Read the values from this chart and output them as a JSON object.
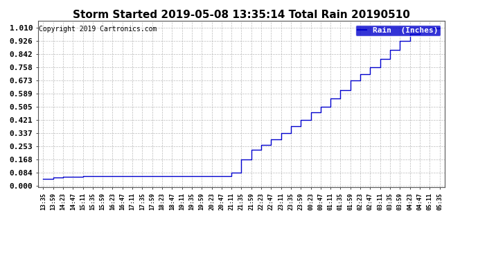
{
  "title": "Storm Started 2019-05-08 13:35:14 Total Rain 20190510",
  "copyright": "Copyright 2019 Cartronics.com",
  "legend_label": "Rain  (Inches)",
  "line_color": "#0000cc",
  "legend_bg": "#0000cc",
  "legend_text_color": "#ffffff",
  "background_color": "#ffffff",
  "plot_bg_color": "#ffffff",
  "grid_color": "#aaaaaa",
  "title_color": "#000000",
  "ylabel_values": [
    0.0,
    0.084,
    0.168,
    0.253,
    0.337,
    0.421,
    0.505,
    0.589,
    0.673,
    0.758,
    0.842,
    0.926,
    1.01
  ],
  "ymin": -0.01,
  "ymax": 1.055,
  "x_tick_labels": [
    "13:35",
    "13:59",
    "14:23",
    "14:47",
    "15:11",
    "15:35",
    "15:59",
    "16:23",
    "16:47",
    "17:11",
    "17:35",
    "17:59",
    "18:23",
    "18:47",
    "19:11",
    "19:35",
    "19:59",
    "20:23",
    "20:47",
    "21:11",
    "21:35",
    "21:59",
    "22:23",
    "22:47",
    "23:11",
    "23:35",
    "23:59",
    "00:23",
    "00:47",
    "01:11",
    "01:35",
    "01:59",
    "02:23",
    "02:47",
    "03:11",
    "03:35",
    "03:59",
    "04:23",
    "04:47",
    "05:11",
    "05:35"
  ],
  "anchors_x": [
    0,
    1,
    2,
    3,
    4,
    5,
    6,
    7,
    8,
    9,
    10,
    11,
    12,
    13,
    14,
    15,
    16,
    17,
    18,
    19,
    20,
    21,
    22,
    23,
    24,
    25,
    26,
    27,
    28,
    29,
    30,
    31,
    32,
    33,
    34,
    35,
    36,
    37,
    38,
    39,
    40
  ],
  "anchors_y": [
    0.042,
    0.05,
    0.055,
    0.058,
    0.06,
    0.062,
    0.063,
    0.063,
    0.063,
    0.063,
    0.063,
    0.063,
    0.063,
    0.063,
    0.063,
    0.063,
    0.063,
    0.063,
    0.063,
    0.084,
    0.168,
    0.23,
    0.26,
    0.295,
    0.337,
    0.38,
    0.421,
    0.47,
    0.505,
    0.56,
    0.61,
    0.673,
    0.715,
    0.758,
    0.81,
    0.87,
    0.926,
    0.97,
    1.0,
    1.005,
    1.01
  ]
}
